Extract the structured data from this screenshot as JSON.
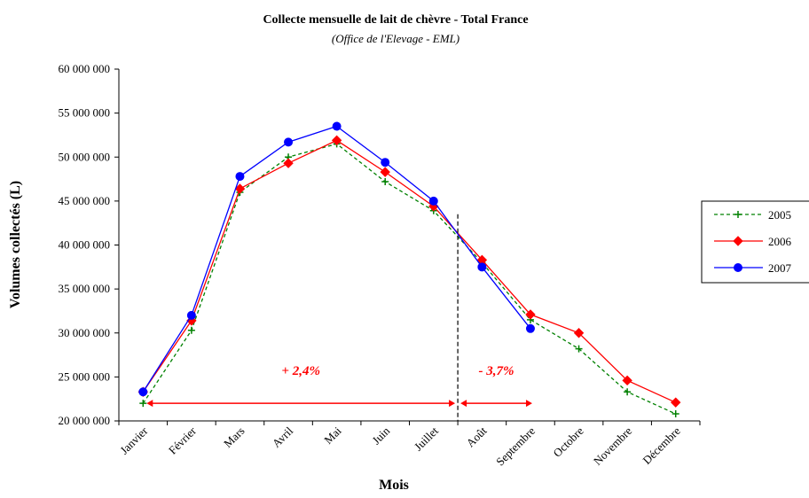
{
  "chart_data": {
    "type": "line",
    "title": "Collecte mensuelle de lait de chèvre - Total France",
    "subtitle": "(Office de l'Elevage - EML)",
    "xlabel": "Mois",
    "ylabel": "Volumes collectés (L)",
    "ylim": [
      20000000,
      60000000
    ],
    "yticks": [
      20000000,
      25000000,
      30000000,
      35000000,
      40000000,
      45000000,
      50000000,
      55000000,
      60000000
    ],
    "ytick_labels": [
      "20 000 000",
      "25 000 000",
      "30 000 000",
      "35 000 000",
      "40 000 000",
      "45 000 000",
      "50 000 000",
      "55 000 000",
      "60 000 000"
    ],
    "categories": [
      "Janvier",
      "Février",
      "Mars",
      "Avril",
      "Mai",
      "Juin",
      "Juillet",
      "Août",
      "Septembre",
      "Octobre",
      "Novembre",
      "Décembre"
    ],
    "grid": false,
    "legend_position": "right",
    "series": [
      {
        "name": "2005",
        "color": "#008000",
        "marker": "plus",
        "line_style": "dashed",
        "values": [
          22000000,
          30300000,
          46000000,
          50000000,
          51500000,
          47200000,
          43900000,
          38000000,
          31500000,
          28200000,
          23300000,
          20800000
        ]
      },
      {
        "name": "2006",
        "color": "#ff0000",
        "marker": "diamond",
        "line_style": "solid",
        "values": [
          23300000,
          31400000,
          46400000,
          49300000,
          51900000,
          48300000,
          44400000,
          38300000,
          32100000,
          30000000,
          24600000,
          22100000
        ]
      },
      {
        "name": "2007",
        "color": "#0000ff",
        "marker": "circle",
        "line_style": "solid",
        "values": [
          23300000,
          32000000,
          47800000,
          51700000,
          53500000,
          49400000,
          45000000,
          37500000,
          30500000,
          null,
          null,
          null
        ]
      }
    ],
    "annotations": [
      {
        "text": "+ 2,4%",
        "color": "#ff0000",
        "from_month": "Janvier",
        "to_month": "Août"
      },
      {
        "text": "- 3,7%",
        "color": "#ff0000",
        "from_month": "Août",
        "to_month": "Septembre"
      }
    ],
    "divider_line": {
      "style": "dashed",
      "color": "#000000"
    }
  }
}
